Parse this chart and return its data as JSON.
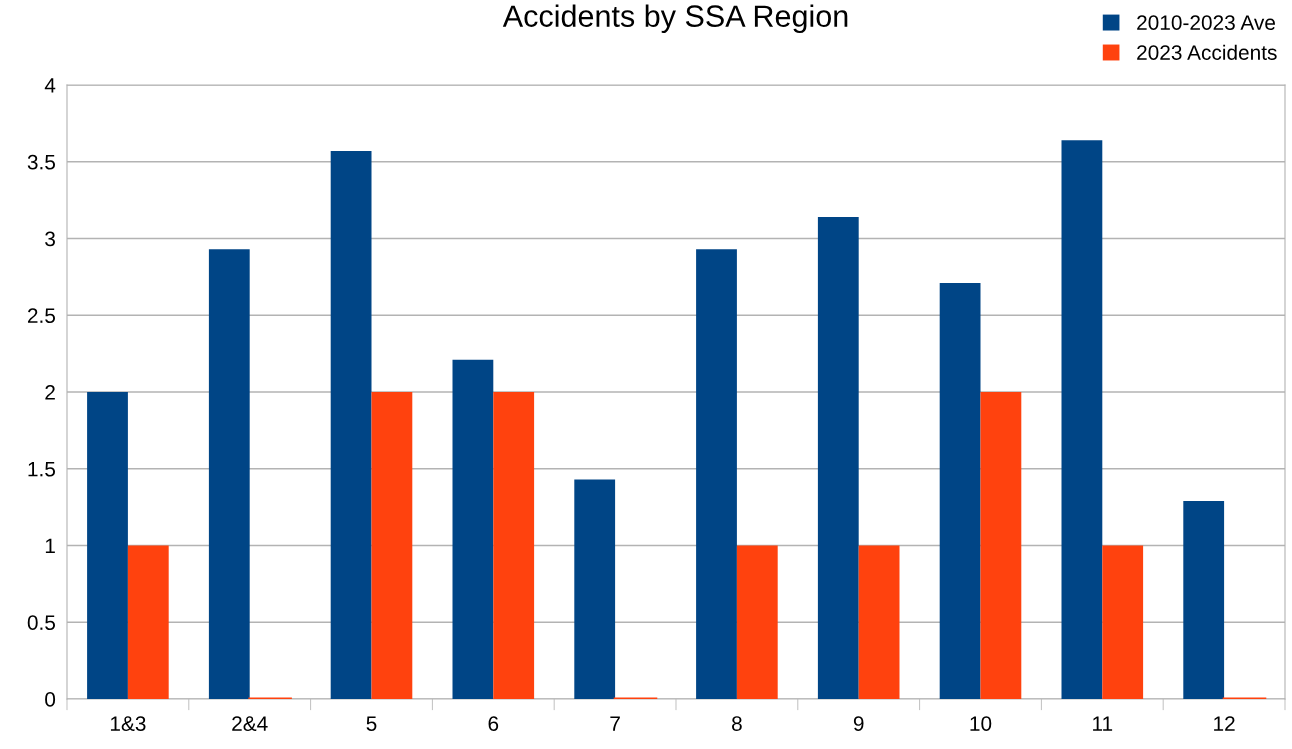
{
  "chart_data": {
    "type": "bar",
    "title": "Accidents by SSA Region",
    "categories": [
      "1&3",
      "2&4",
      "5",
      "6",
      "7",
      "8",
      "9",
      "10",
      "11",
      "12"
    ],
    "series": [
      {
        "name": "2010-2023 Ave",
        "color": "#004586",
        "values": [
          2.0,
          2.93,
          3.57,
          2.21,
          1.43,
          2.93,
          3.14,
          2.71,
          3.64,
          1.29
        ]
      },
      {
        "name": "2023 Accidents",
        "color": "#ff420e",
        "values": [
          1,
          0,
          2,
          2,
          0,
          1,
          1,
          2,
          1,
          0
        ]
      }
    ],
    "ylim": [
      0,
      4
    ],
    "yticks": [
      0,
      0.5,
      1,
      1.5,
      2,
      2.5,
      3,
      3.5,
      4
    ],
    "grid": "y",
    "legend": "top right"
  }
}
